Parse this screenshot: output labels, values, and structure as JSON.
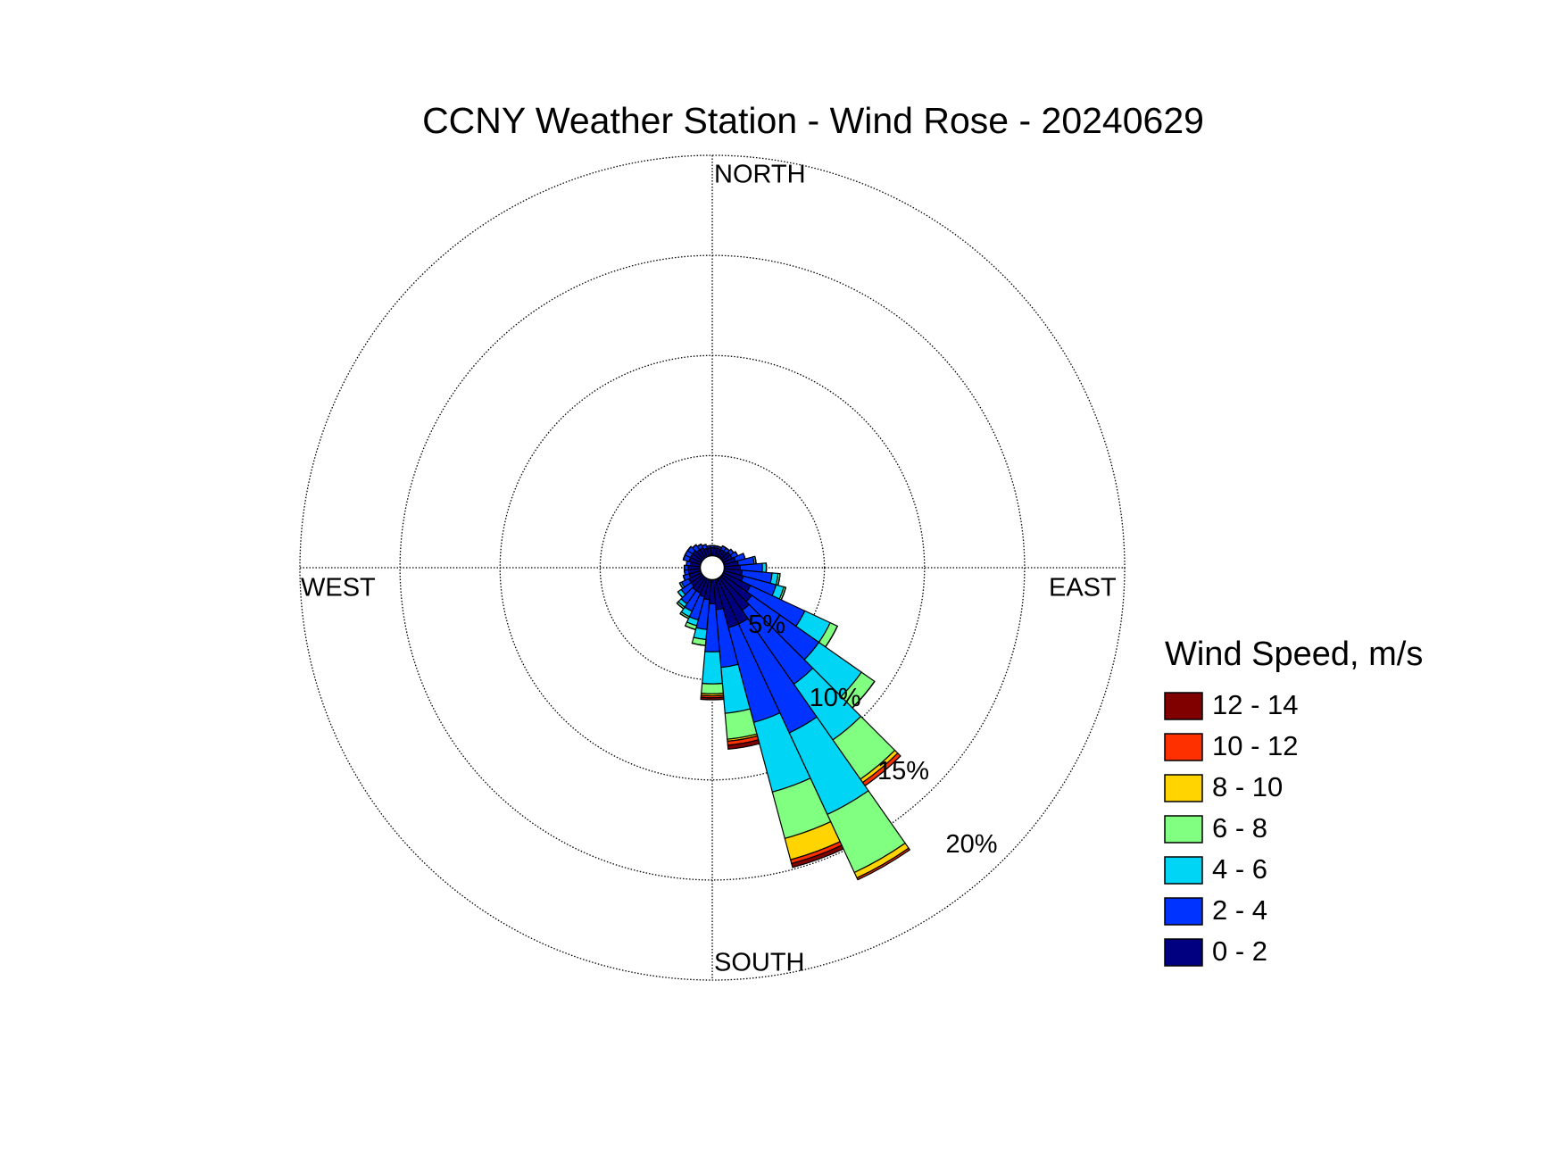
{
  "chart_data": {
    "type": "windrose",
    "title": "CCNY Weather Station - Wind Rose - 20240629",
    "legend_title": "Wind Speed, m/s",
    "direction_labels": [
      "NORTH",
      "EAST",
      "SOUTH",
      "WEST"
    ],
    "theta": [
      0,
      10,
      20,
      30,
      40,
      50,
      60,
      70,
      80,
      90,
      100,
      110,
      120,
      130,
      140,
      150,
      160,
      170,
      180,
      190,
      200,
      210,
      220,
      230,
      240,
      250,
      260,
      270,
      280,
      290,
      300,
      310,
      320,
      330,
      340,
      350
    ],
    "rlim": [
      0,
      20
    ],
    "rticks": [
      {
        "value": 5,
        "label": "5%"
      },
      {
        "value": 10,
        "label": "10%"
      },
      {
        "value": 15,
        "label": "15%"
      },
      {
        "value": 20,
        "label": "20%"
      }
    ],
    "series": [
      {
        "name": "0 - 2",
        "color": "#000080",
        "values": [
          0.4,
          0.4,
          0.4,
          0.4,
          0.4,
          0.5,
          0.5,
          0.6,
          0.7,
          0.8,
          0.9,
          1.0,
          1.5,
          1.8,
          2.0,
          2.5,
          2.5,
          1.5,
          1.2,
          1.0,
          0.9,
          0.8,
          0.8,
          0.7,
          0.7,
          0.6,
          0.6,
          0.6,
          0.5,
          0.6,
          0.6,
          0.6,
          0.5,
          0.5,
          0.4,
          0.4
        ]
      },
      {
        "name": "2 - 4",
        "color": "#0033ff",
        "values": [
          0.1,
          0.1,
          0.1,
          0.2,
          0.2,
          0.2,
          0.3,
          0.5,
          0.8,
          1.1,
          1.5,
          1.7,
          3.0,
          4.1,
          4.5,
          6.0,
          4.9,
          2.9,
          2.4,
          1.5,
          1.2,
          1.0,
          0.8,
          0.6,
          0.4,
          0.3,
          0.2,
          0.2,
          0.2,
          0.3,
          0.3,
          0.3,
          0.3,
          0.2,
          0.2,
          0.1
        ]
      },
      {
        "name": "4 - 6",
        "color": "#00d5f5",
        "values": [
          0,
          0,
          0,
          0,
          0,
          0,
          0,
          0,
          0.1,
          0.2,
          0.3,
          0.4,
          1.4,
          2.6,
          3.4,
          4.5,
          3.6,
          2.3,
          1.6,
          0.5,
          0.3,
          0.3,
          0.2,
          0.2,
          0.1,
          0,
          0,
          0,
          0,
          0,
          0,
          0,
          0,
          0,
          0,
          0
        ]
      },
      {
        "name": "6 - 8",
        "color": "#80ff80",
        "values": [
          0,
          0,
          0,
          0,
          0,
          0,
          0,
          0,
          0,
          0,
          0.1,
          0.1,
          0.4,
          0.8,
          2.4,
          3.2,
          2.4,
          1.3,
          0.5,
          0.3,
          0.2,
          0.1,
          0.1,
          0,
          0,
          0,
          0,
          0,
          0,
          0,
          0,
          0,
          0,
          0,
          0,
          0
        ]
      },
      {
        "name": "8 - 10",
        "color": "#ffd400",
        "values": [
          0,
          0,
          0,
          0,
          0,
          0,
          0,
          0,
          0,
          0,
          0,
          0,
          0,
          0,
          0.2,
          0.3,
          1.1,
          0.1,
          0.1,
          0,
          0,
          0,
          0,
          0,
          0,
          0,
          0,
          0,
          0,
          0,
          0,
          0,
          0,
          0,
          0,
          0
        ]
      },
      {
        "name": "10 - 12",
        "color": "#ff3000",
        "values": [
          0,
          0,
          0,
          0,
          0,
          0,
          0,
          0,
          0,
          0,
          0,
          0,
          0,
          0,
          0.2,
          0.1,
          0.2,
          0.2,
          0.1,
          0,
          0,
          0,
          0,
          0,
          0,
          0,
          0,
          0,
          0,
          0,
          0,
          0,
          0,
          0,
          0,
          0
        ]
      },
      {
        "name": "12 - 14",
        "color": "#800000",
        "values": [
          0,
          0,
          0,
          0,
          0,
          0,
          0,
          0,
          0,
          0,
          0,
          0,
          0,
          0,
          0,
          0,
          0.2,
          0.2,
          0.1,
          0,
          0,
          0,
          0,
          0,
          0,
          0,
          0,
          0,
          0,
          0,
          0,
          0,
          0,
          0,
          0,
          0
        ]
      }
    ]
  }
}
